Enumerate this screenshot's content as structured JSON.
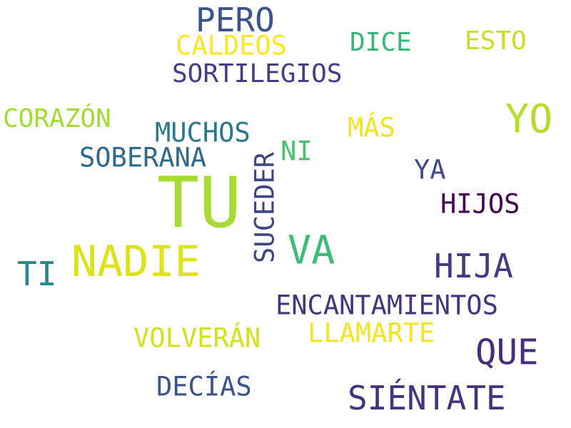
{
  "words": {
    "pero": {
      "text": "PERO",
      "color": "#3b528b"
    },
    "caldeos": {
      "text": "CALDEOS",
      "color": "#fde725"
    },
    "dice": {
      "text": "DICE",
      "color": "#35b779"
    },
    "esto": {
      "text": "ESTO",
      "color": "#c8e020"
    },
    "sortilegios": {
      "text": "SORTILEGIOS",
      "color": "#433e85"
    },
    "corazon": {
      "text": "CORAZÓN",
      "color": "#a5db36"
    },
    "mas": {
      "text": "MÁS",
      "color": "#f1e51d"
    },
    "yo": {
      "text": "YO",
      "color": "#b5de2b"
    },
    "muchos": {
      "text": "MUCHOS",
      "color": "#2a788e"
    },
    "ni": {
      "text": "NI",
      "color": "#48c16e"
    },
    "soberana": {
      "text": "SOBERANA",
      "color": "#31688e"
    },
    "suceder": {
      "text": "SUCEDER",
      "color": "#414487"
    },
    "ya": {
      "text": "YA",
      "color": "#3e4a89"
    },
    "tu": {
      "text": "TU",
      "color": "#a8db34"
    },
    "hijos": {
      "text": "HIJOS",
      "color": "#440154"
    },
    "va": {
      "text": "VA",
      "color": "#3cbc75"
    },
    "nadie": {
      "text": "NADIE",
      "color": "#dde318"
    },
    "hija": {
      "text": "HIJA",
      "color": "#443983"
    },
    "ti": {
      "text": "TI",
      "color": "#23898e"
    },
    "encantamientos": {
      "text": "ENCANTAMIENTOS",
      "color": "#453581"
    },
    "llamarte": {
      "text": "LLAMARTE",
      "color": "#f4e61e"
    },
    "volveran": {
      "text": "VOLVERÁN",
      "color": "#d2e21b"
    },
    "que": {
      "text": "QUE",
      "color": "#472d7b"
    },
    "decias": {
      "text": "DECÍAS",
      "color": "#3b528b"
    },
    "sientate": {
      "text": "SIÉNTATE",
      "color": "#46337e"
    }
  }
}
